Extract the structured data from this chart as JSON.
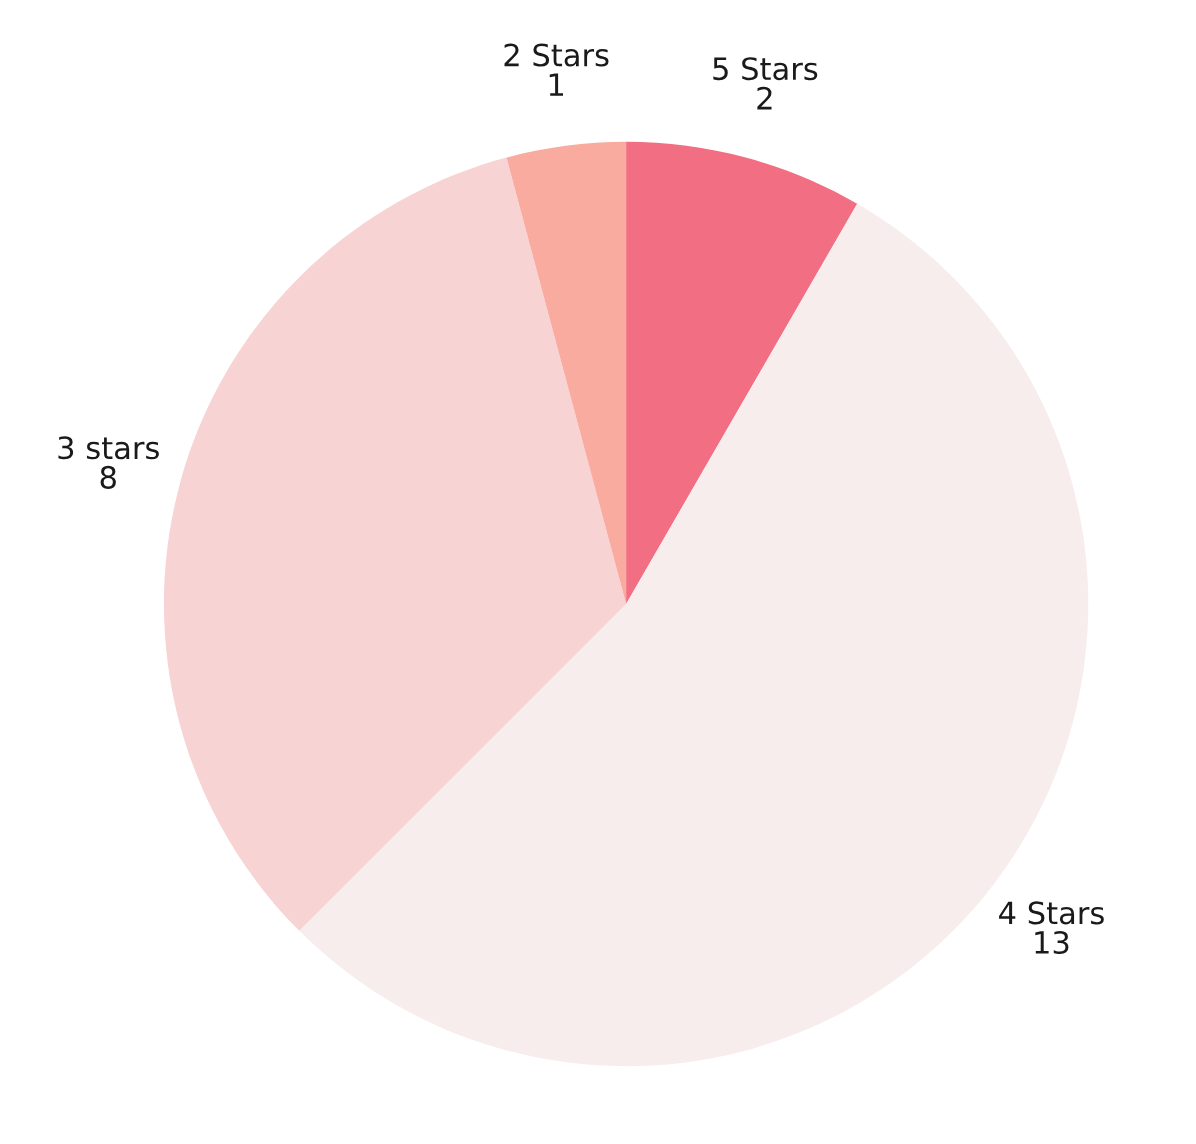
{
  "chart_data": {
    "type": "pie",
    "categories": [
      "5 Stars",
      "4 Stars",
      "3 stars",
      "2 Stars"
    ],
    "values": [
      2,
      13,
      8,
      1
    ],
    "colors": [
      "#f26e82",
      "#f8eded",
      "#f8d3d3",
      "#f9aba0"
    ],
    "data_labels": true,
    "legend": false
  }
}
